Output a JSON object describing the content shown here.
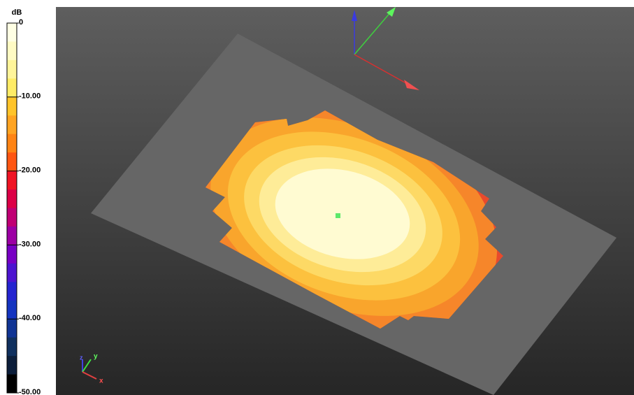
{
  "colorbar": {
    "unit": "dB",
    "labels": [
      "0",
      "-10.00",
      "-20.00",
      "-30.00",
      "-40.00",
      "-50.00"
    ]
  },
  "axes_gizmo": {
    "x": "x",
    "y": "y",
    "z": "z"
  }
}
